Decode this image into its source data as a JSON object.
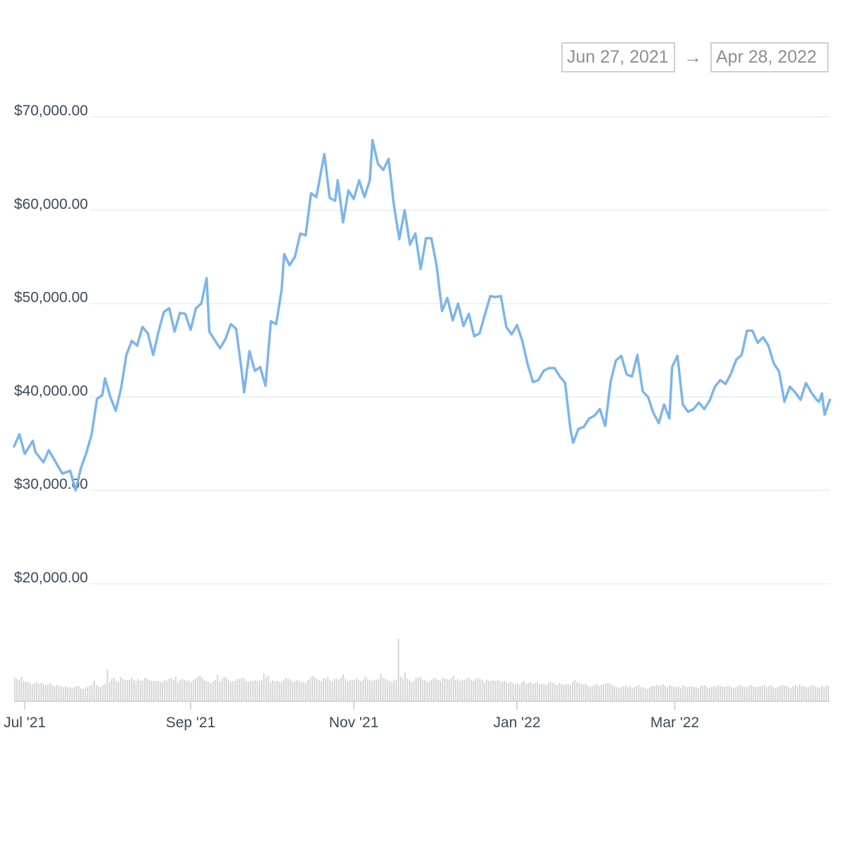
{
  "date_range": {
    "start": "Jun 27, 2021",
    "arrow": "→",
    "end": "Apr 28, 2022"
  },
  "colors": {
    "price_line": "#7cb5ec",
    "volume_bar": "#d4d4d4",
    "grid": "#e9edf0",
    "axis": "#ccd6eb",
    "tick_text": "#3b4a5a"
  },
  "chart_data": {
    "type": "line",
    "title": "",
    "xlabel": "",
    "ylabel": "",
    "x_start": "2021-06-27",
    "x_end": "2022-04-28",
    "ylim": [
      20000,
      70000
    ],
    "y_ticks": [
      {
        "value": 70000,
        "label": "$70,000.00"
      },
      {
        "value": 60000,
        "label": "$60,000.00"
      },
      {
        "value": 50000,
        "label": "$50,000.00"
      },
      {
        "value": 40000,
        "label": "$40,000.00"
      },
      {
        "value": 30000,
        "label": "$30,000.00"
      },
      {
        "value": 20000,
        "label": "$20,000.00"
      }
    ],
    "x_ticks": [
      {
        "date": "2021-07-01",
        "label": "Jul '21"
      },
      {
        "date": "2021-09-01",
        "label": "Sep '21"
      },
      {
        "date": "2021-11-01",
        "label": "Nov '21"
      },
      {
        "date": "2022-01-01",
        "label": "Jan '22"
      },
      {
        "date": "2022-03-01",
        "label": "Mar '22"
      }
    ],
    "grid": true,
    "legend": "none",
    "series": [
      {
        "kind": "price",
        "points": [
          [
            "2021-06-27",
            34700
          ],
          [
            "2021-06-29",
            36000
          ],
          [
            "2021-07-01",
            33900
          ],
          [
            "2021-07-04",
            35300
          ],
          [
            "2021-07-05",
            34100
          ],
          [
            "2021-07-08",
            33000
          ],
          [
            "2021-07-10",
            34300
          ],
          [
            "2021-07-13",
            32800
          ],
          [
            "2021-07-15",
            31800
          ],
          [
            "2021-07-18",
            32100
          ],
          [
            "2021-07-20",
            30000
          ],
          [
            "2021-07-22",
            32400
          ],
          [
            "2021-07-24",
            34000
          ],
          [
            "2021-07-26",
            36000
          ],
          [
            "2021-07-28",
            39800
          ],
          [
            "2021-07-30",
            40200
          ],
          [
            "2021-07-31",
            42000
          ],
          [
            "2021-08-02",
            40000
          ],
          [
            "2021-08-04",
            38500
          ],
          [
            "2021-08-06",
            40900
          ],
          [
            "2021-08-08",
            44500
          ],
          [
            "2021-08-10",
            46000
          ],
          [
            "2021-08-12",
            45500
          ],
          [
            "2021-08-14",
            47500
          ],
          [
            "2021-08-16",
            46800
          ],
          [
            "2021-08-18",
            44500
          ],
          [
            "2021-08-20",
            47000
          ],
          [
            "2021-08-22",
            49100
          ],
          [
            "2021-08-24",
            49500
          ],
          [
            "2021-08-26",
            47000
          ],
          [
            "2021-08-28",
            49000
          ],
          [
            "2021-08-30",
            48900
          ],
          [
            "2021-09-01",
            47200
          ],
          [
            "2021-09-03",
            49500
          ],
          [
            "2021-09-05",
            50000
          ],
          [
            "2021-09-07",
            52700
          ],
          [
            "2021-09-08",
            47000
          ],
          [
            "2021-09-10",
            46100
          ],
          [
            "2021-09-12",
            45200
          ],
          [
            "2021-09-14",
            46200
          ],
          [
            "2021-09-16",
            47800
          ],
          [
            "2021-09-18",
            47300
          ],
          [
            "2021-09-20",
            43000
          ],
          [
            "2021-09-21",
            40500
          ],
          [
            "2021-09-23",
            44900
          ],
          [
            "2021-09-25",
            42800
          ],
          [
            "2021-09-27",
            43200
          ],
          [
            "2021-09-29",
            41200
          ],
          [
            "2021-10-01",
            48100
          ],
          [
            "2021-10-03",
            47800
          ],
          [
            "2021-10-05",
            51400
          ],
          [
            "2021-10-06",
            55300
          ],
          [
            "2021-10-08",
            54100
          ],
          [
            "2021-10-10",
            55000
          ],
          [
            "2021-10-12",
            57500
          ],
          [
            "2021-10-14",
            57300
          ],
          [
            "2021-10-16",
            61800
          ],
          [
            "2021-10-18",
            61400
          ],
          [
            "2021-10-20",
            64500
          ],
          [
            "2021-10-21",
            66000
          ],
          [
            "2021-10-23",
            61300
          ],
          [
            "2021-10-25",
            61000
          ],
          [
            "2021-10-26",
            63200
          ],
          [
            "2021-10-28",
            58700
          ],
          [
            "2021-10-30",
            62100
          ],
          [
            "2021-11-01",
            61200
          ],
          [
            "2021-11-03",
            63200
          ],
          [
            "2021-11-05",
            61400
          ],
          [
            "2021-11-07",
            63200
          ],
          [
            "2021-11-08",
            67500
          ],
          [
            "2021-11-10",
            65000
          ],
          [
            "2021-11-12",
            64300
          ],
          [
            "2021-11-14",
            65500
          ],
          [
            "2021-11-16",
            60500
          ],
          [
            "2021-11-18",
            56900
          ],
          [
            "2021-11-20",
            60000
          ],
          [
            "2021-11-22",
            56300
          ],
          [
            "2021-11-24",
            57500
          ],
          [
            "2021-11-26",
            53700
          ],
          [
            "2021-11-28",
            57000
          ],
          [
            "2021-11-30",
            57000
          ],
          [
            "2021-12-02",
            54000
          ],
          [
            "2021-12-04",
            49200
          ],
          [
            "2021-12-06",
            50600
          ],
          [
            "2021-12-08",
            48200
          ],
          [
            "2021-12-10",
            50000
          ],
          [
            "2021-12-12",
            47600
          ],
          [
            "2021-12-14",
            48900
          ],
          [
            "2021-12-16",
            46500
          ],
          [
            "2021-12-18",
            46800
          ],
          [
            "2021-12-20",
            48800
          ],
          [
            "2021-12-22",
            50800
          ],
          [
            "2021-12-24",
            50700
          ],
          [
            "2021-12-26",
            50800
          ],
          [
            "2021-12-28",
            47500
          ],
          [
            "2021-12-30",
            46700
          ],
          [
            "2022-01-01",
            47700
          ],
          [
            "2022-01-03",
            46000
          ],
          [
            "2022-01-05",
            43500
          ],
          [
            "2022-01-07",
            41600
          ],
          [
            "2022-01-09",
            41800
          ],
          [
            "2022-01-11",
            42800
          ],
          [
            "2022-01-13",
            43100
          ],
          [
            "2022-01-15",
            43100
          ],
          [
            "2022-01-17",
            42200
          ],
          [
            "2022-01-19",
            41500
          ],
          [
            "2022-01-21",
            36500
          ],
          [
            "2022-01-22",
            35100
          ],
          [
            "2022-01-24",
            36600
          ],
          [
            "2022-01-26",
            36800
          ],
          [
            "2022-01-28",
            37700
          ],
          [
            "2022-01-30",
            38000
          ],
          [
            "2022-02-01",
            38700
          ],
          [
            "2022-02-03",
            36900
          ],
          [
            "2022-02-05",
            41600
          ],
          [
            "2022-02-07",
            43900
          ],
          [
            "2022-02-09",
            44400
          ],
          [
            "2022-02-11",
            42400
          ],
          [
            "2022-02-13",
            42200
          ],
          [
            "2022-02-15",
            44500
          ],
          [
            "2022-02-17",
            40600
          ],
          [
            "2022-02-19",
            40000
          ],
          [
            "2022-02-21",
            38300
          ],
          [
            "2022-02-23",
            37200
          ],
          [
            "2022-02-25",
            39200
          ],
          [
            "2022-02-27",
            37700
          ],
          [
            "2022-02-28",
            43200
          ],
          [
            "2022-03-02",
            44400
          ],
          [
            "2022-03-04",
            39200
          ],
          [
            "2022-03-06",
            38400
          ],
          [
            "2022-03-08",
            38700
          ],
          [
            "2022-03-10",
            39400
          ],
          [
            "2022-03-12",
            38700
          ],
          [
            "2022-03-14",
            39600
          ],
          [
            "2022-03-16",
            41100
          ],
          [
            "2022-03-18",
            41800
          ],
          [
            "2022-03-20",
            41400
          ],
          [
            "2022-03-22",
            42500
          ],
          [
            "2022-03-24",
            44000
          ],
          [
            "2022-03-26",
            44500
          ],
          [
            "2022-03-28",
            47100
          ],
          [
            "2022-03-30",
            47100
          ],
          [
            "2022-04-01",
            45800
          ],
          [
            "2022-04-03",
            46400
          ],
          [
            "2022-04-05",
            45500
          ],
          [
            "2022-04-07",
            43600
          ],
          [
            "2022-04-09",
            42700
          ],
          [
            "2022-04-11",
            39500
          ],
          [
            "2022-04-13",
            41100
          ],
          [
            "2022-04-15",
            40500
          ],
          [
            "2022-04-17",
            39700
          ],
          [
            "2022-04-19",
            41500
          ],
          [
            "2022-04-21",
            40500
          ],
          [
            "2022-04-23",
            39700
          ],
          [
            "2022-04-24",
            39500
          ],
          [
            "2022-04-25",
            40400
          ],
          [
            "2022-04-26",
            38100
          ],
          [
            "2022-04-28",
            39700
          ]
        ]
      },
      {
        "kind": "volume",
        "relative_values": [
          22,
          21,
          20,
          23,
          19,
          18,
          18,
          17,
          16,
          17,
          18,
          16,
          17,
          16,
          15,
          16,
          17,
          15,
          14,
          15,
          14,
          14,
          13,
          14,
          13,
          13,
          12,
          13,
          14,
          14,
          12,
          11,
          12,
          13,
          14,
          15,
          19,
          15,
          14,
          13,
          15,
          16,
          30,
          18,
          21,
          22,
          19,
          18,
          23,
          21,
          20,
          20,
          20,
          22,
          20,
          19,
          21,
          19,
          20,
          22,
          21,
          20,
          19,
          19,
          19,
          19,
          18,
          18,
          20,
          19,
          21,
          22,
          20,
          23,
          18,
          20,
          21,
          20,
          19,
          20,
          18,
          20,
          21,
          23,
          24,
          22,
          20,
          19,
          18,
          17,
          19,
          20,
          25,
          19,
          21,
          23,
          22,
          20,
          18,
          19,
          19,
          21,
          21,
          22,
          21,
          19,
          18,
          19,
          19,
          20,
          19,
          19,
          20,
          26,
          22,
          24,
          18,
          20,
          19,
          19,
          18,
          18,
          20,
          22,
          21,
          20,
          18,
          19,
          20,
          19,
          18,
          18,
          17,
          20,
          22,
          24,
          23,
          21,
          20,
          19,
          22,
          21,
          23,
          20,
          19,
          21,
          21,
          20,
          22,
          25,
          21,
          19,
          20,
          20,
          20,
          22,
          20,
          19,
          20,
          23,
          21,
          20,
          19,
          20,
          20,
          21,
          26,
          22,
          21,
          20,
          19,
          18,
          20,
          20,
          60,
          23,
          21,
          27,
          21,
          20,
          18,
          19,
          22,
          22,
          23,
          20,
          20,
          18,
          19,
          20,
          22,
          21,
          20,
          19,
          22,
          21,
          21,
          20,
          22,
          24,
          20,
          21,
          19,
          20,
          20,
          21,
          22,
          20,
          19,
          21,
          22,
          21,
          20,
          18,
          20,
          19,
          19,
          20,
          19,
          20,
          19,
          18,
          19,
          18,
          17,
          18,
          17,
          16,
          17,
          15,
          18,
          19,
          16,
          17,
          18,
          16,
          17,
          18,
          16,
          16,
          16,
          15,
          17,
          18,
          17,
          16,
          15,
          17,
          16,
          15,
          16,
          16,
          15,
          18,
          20,
          18,
          17,
          16,
          16,
          16,
          14,
          13,
          14,
          15,
          16,
          14,
          15,
          16,
          16,
          17,
          16,
          15,
          14,
          13,
          12,
          13,
          14,
          15,
          13,
          14,
          12,
          13,
          14,
          15,
          13,
          13,
          12,
          11,
          13,
          14,
          14,
          15,
          14,
          15,
          16,
          14,
          13,
          15,
          14,
          13,
          13,
          14,
          12,
          15,
          14,
          13,
          14,
          14,
          13,
          13,
          12,
          14,
          14,
          15,
          13,
          12,
          13,
          14,
          13,
          15,
          14,
          14,
          13,
          14,
          14,
          13,
          12,
          13,
          14,
          15,
          14,
          13,
          13,
          14,
          15,
          14,
          13,
          13,
          14,
          14,
          15,
          13,
          14,
          15,
          13,
          12,
          13,
          14,
          15,
          14,
          14,
          13,
          12,
          14,
          15,
          14,
          16,
          14,
          14,
          13,
          13,
          14,
          15,
          14,
          13,
          12,
          14,
          13,
          15,
          14
        ]
      }
    ]
  }
}
